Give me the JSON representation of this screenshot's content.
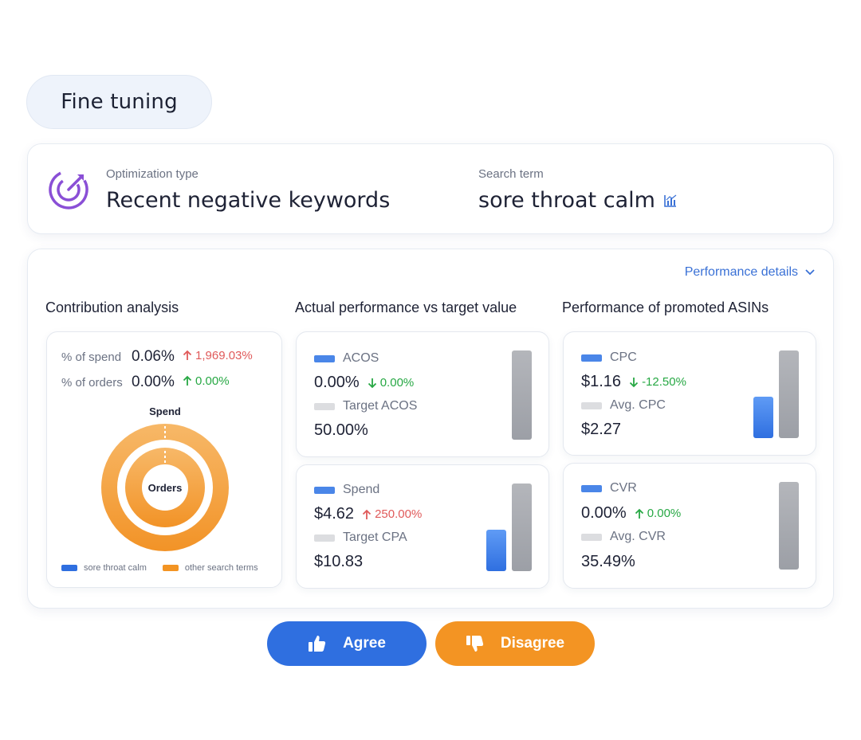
{
  "title": "Fine tuning",
  "optimization": {
    "type_label": "Optimization type",
    "type_value": "Recent negative keywords",
    "search_label": "Search term",
    "search_value": "sore throat calm"
  },
  "performance_details": "Performance details",
  "sections": {
    "contribution": "Contribution analysis",
    "actual_vs_target": "Actual performance vs target value",
    "promoted": "Performance of promoted ASINs"
  },
  "contribution": {
    "spend_label": "% of spend",
    "spend_value": "0.06%",
    "spend_change": "1,969.03%",
    "orders_label": "% of orders",
    "orders_value": "0.00%",
    "orders_change": "0.00%",
    "ring_outer_label": "Spend",
    "ring_inner_label": "Orders",
    "legend": [
      "sore throat calm",
      "other search terms"
    ],
    "colors": {
      "term": "#2f6fe0",
      "other": "#f39423"
    }
  },
  "metrics": {
    "acos": {
      "label": "ACOS",
      "value": "0.00%",
      "change": "0.00%",
      "target_label": "Target ACOS",
      "target_value": "50.00%"
    },
    "spend": {
      "label": "Spend",
      "value": "$4.62",
      "change": "250.00%",
      "target_label": "Target CPA",
      "target_value": "$10.83"
    },
    "cpc": {
      "label": "CPC",
      "value": "$1.16",
      "change": "-12.50%",
      "target_label": "Avg. CPC",
      "target_value": "$2.27"
    },
    "cvr": {
      "label": "CVR",
      "value": "0.00%",
      "change": "0.00%",
      "target_label": "Avg. CVR",
      "target_value": "35.49%"
    }
  },
  "buttons": {
    "agree": "Agree",
    "disagree": "Disagree"
  }
}
